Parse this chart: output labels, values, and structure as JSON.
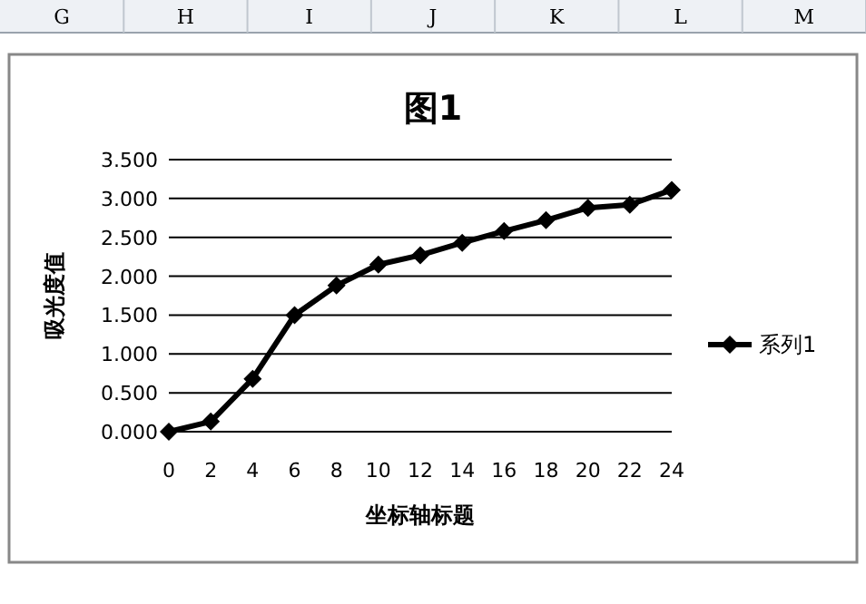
{
  "chart_data": {
    "type": "line",
    "title": "图1",
    "xlabel": "坐标轴标题",
    "ylabel": "吸光度值",
    "annotations": [
      "G",
      "H",
      "I",
      "J",
      "K",
      "L",
      "M"
    ],
    "x": [
      0,
      2,
      4,
      6,
      8,
      10,
      12,
      14,
      16,
      18,
      20,
      22,
      24
    ],
    "series": [
      {
        "name": "系列1",
        "color": "#000000",
        "values": [
          0,
          0.13,
          0.68,
          1.5,
          1.88,
          2.15,
          2.27,
          2.43,
          2.58,
          2.72,
          2.88,
          2.92,
          3.11
        ]
      }
    ],
    "xlim": [
      0,
      24
    ],
    "xticks": [
      0,
      2,
      4,
      6,
      8,
      10,
      12,
      14,
      16,
      18,
      20,
      22,
      24
    ],
    "ylim": [
      0,
      3.5
    ],
    "yticks": [
      {
        "value": 0,
        "label": "0.000"
      },
      {
        "value": 0.5,
        "label": "0.500"
      },
      {
        "value": 1,
        "label": "1.000"
      },
      {
        "value": 1.5,
        "label": "1.500"
      },
      {
        "value": 2,
        "label": "2.000"
      },
      {
        "value": 2.5,
        "label": "2.500"
      },
      {
        "value": 3,
        "label": "3.000"
      },
      {
        "value": 3.5,
        "label": "3.500"
      }
    ],
    "grid": "y",
    "legend": "right",
    "marker": "diamond",
    "line_style": "solid"
  }
}
